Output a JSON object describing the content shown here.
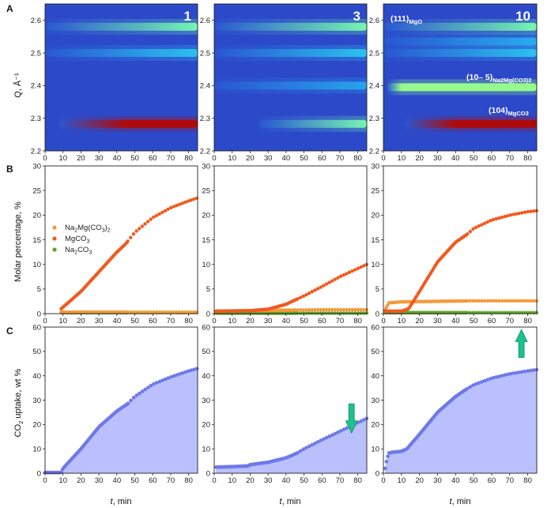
{
  "colors": {
    "na2mg": "#f59a3a",
    "mgco3": "#f05a1e",
    "na2co3": "#5fa52a",
    "uptake_line": "#6f79e8",
    "uptake_fill": "#b9c0fb",
    "arrow": "#1fbf8f",
    "heat_bg": "#2c49c9"
  },
  "row_labels": {
    "a": "A",
    "b": "B",
    "c": "C"
  },
  "x_label_t": "t",
  "x_label_rest": ", min",
  "x_ticks": [
    "0",
    "10",
    "20",
    "30",
    "40",
    "50",
    "60",
    "70",
    "80"
  ],
  "heatmap": {
    "ylabel": "Q, Å⁻¹",
    "y_ticks": [
      "2.2",
      "2.3",
      "2.4",
      "2.5",
      "2.6"
    ],
    "panel_numbers": [
      "1",
      "3",
      "10"
    ],
    "annotations": {
      "mgo_main": "(111)",
      "mgo_sub": "MgO",
      "na2mg_main": "(10– 5)",
      "na2mg_sub": "Na2Mg(CO3)2",
      "mgco3_main": "(104)",
      "mgco3_sub": "MgCO3"
    }
  },
  "molar": {
    "ylabel": "Molar percentage, %",
    "y_ticks": [
      "0",
      "5",
      "10",
      "15",
      "20",
      "25",
      "30"
    ],
    "legend": {
      "na2mg_a": "Na",
      "na2mg_b": "2",
      "na2mg_c": "Mg(CO",
      "na2mg_d": "3",
      "na2mg_e": ")",
      "na2mg_f": "2",
      "mgco3_a": "MgCO",
      "mgco3_b": "3",
      "na2co3_a": "Na",
      "na2co3_b": "2",
      "na2co3_c": "CO",
      "na2co3_d": "3"
    }
  },
  "uptake": {
    "ylabel_a": "CO",
    "ylabel_b": "2",
    "ylabel_c": " uptake, wt %",
    "y_ticks": [
      "0",
      "10",
      "20",
      "30",
      "40",
      "50",
      "60"
    ]
  },
  "chart_data": [
    {
      "type": "heatmap",
      "panel": "A1",
      "title": "1",
      "xlabel": "t, min",
      "ylabel": "Q, Å⁻¹",
      "xlim": [
        0,
        85
      ],
      "ylim": [
        2.2,
        2.65
      ],
      "bands": [
        {
          "q": 2.58,
          "start": 0,
          "peak": 85,
          "intensity": 0.55
        },
        {
          "q": 2.5,
          "start": 0,
          "peak": 85,
          "intensity": 0.35
        },
        {
          "q": 2.283,
          "start": 8,
          "peak": 45,
          "intensity": 1.0
        }
      ]
    },
    {
      "type": "heatmap",
      "panel": "A2",
      "title": "3",
      "xlabel": "t, min",
      "xlim": [
        0,
        85
      ],
      "ylim": [
        2.2,
        2.65
      ],
      "bands": [
        {
          "q": 2.58,
          "start": 0,
          "peak": 85,
          "intensity": 0.55
        },
        {
          "q": 2.5,
          "start": 0,
          "peak": 85,
          "intensity": 0.35
        },
        {
          "q": 2.4,
          "start": 0,
          "peak": 85,
          "intensity": 0.28
        },
        {
          "q": 2.283,
          "start": 25,
          "peak": 85,
          "intensity": 0.55
        }
      ]
    },
    {
      "type": "heatmap",
      "panel": "A3",
      "title": "10",
      "xlabel": "t, min",
      "xlim": [
        0,
        85
      ],
      "ylim": [
        2.2,
        2.65
      ],
      "bands": [
        {
          "q": 2.58,
          "start": 0,
          "peak": 85,
          "intensity": 0.55
        },
        {
          "q": 2.535,
          "start": 0,
          "peak": 85,
          "intensity": 0.3
        },
        {
          "q": 2.5,
          "start": 0,
          "peak": 85,
          "intensity": 0.35
        },
        {
          "q": 2.395,
          "start": 2,
          "peak": 10,
          "intensity": 0.6
        },
        {
          "q": 2.283,
          "start": 12,
          "peak": 40,
          "intensity": 1.0
        }
      ]
    },
    {
      "type": "scatter",
      "panel": "B1",
      "xlabel": "t, min",
      "ylabel": "Molar percentage, %",
      "xlim": [
        0,
        85
      ],
      "ylim": [
        0,
        30
      ],
      "x_start": 9,
      "series": [
        {
          "name": "Na2Mg(CO3)2",
          "color": "#f59a3a",
          "x": [
            9,
            85
          ],
          "y": [
            0.3,
            0.3
          ]
        },
        {
          "name": "MgCO3",
          "color": "#f05a1e",
          "x": [
            9,
            20,
            30,
            40,
            45,
            50,
            60,
            70,
            80,
            85
          ],
          "y": [
            1,
            4.5,
            8.5,
            12.5,
            14.2,
            16.5,
            19.5,
            21.5,
            22.9,
            23.5
          ]
        },
        {
          "name": "Na2CO3",
          "color": "#5fa52a",
          "x": [
            9,
            85
          ],
          "y": [
            0.2,
            0.2
          ]
        }
      ]
    },
    {
      "type": "scatter",
      "panel": "B2",
      "xlabel": "t, min",
      "ylabel": "Molar percentage, %",
      "xlim": [
        0,
        85
      ],
      "ylim": [
        0,
        30
      ],
      "x_start": 1,
      "series": [
        {
          "name": "Na2Mg(CO3)2",
          "color": "#f59a3a",
          "x": [
            1,
            20,
            40,
            60,
            85
          ],
          "y": [
            0.5,
            0.6,
            0.7,
            0.8,
            0.8
          ]
        },
        {
          "name": "MgCO3",
          "color": "#f05a1e",
          "x": [
            1,
            20,
            30,
            40,
            50,
            60,
            70,
            85
          ],
          "y": [
            0.5,
            0.6,
            0.9,
            1.9,
            3.6,
            5.5,
            7.5,
            10
          ]
        },
        {
          "name": "Na2CO3",
          "color": "#5fa52a",
          "x": [
            1,
            85
          ],
          "y": [
            0.1,
            0.1
          ]
        }
      ]
    },
    {
      "type": "scatter",
      "panel": "B3",
      "xlabel": "t, min",
      "ylabel": "Molar percentage, %",
      "xlim": [
        0,
        85
      ],
      "ylim": [
        0,
        30
      ],
      "x_start": 1,
      "series": [
        {
          "name": "Na2Mg(CO3)2",
          "color": "#f59a3a",
          "x": [
            1,
            3,
            10,
            30,
            50,
            85
          ],
          "y": [
            0.8,
            2.2,
            2.4,
            2.5,
            2.6,
            2.6
          ]
        },
        {
          "name": "MgCO3",
          "color": "#f05a1e",
          "x": [
            1,
            10,
            14,
            20,
            30,
            40,
            46,
            50,
            60,
            70,
            80,
            85
          ],
          "y": [
            0.5,
            0.5,
            1.0,
            4.5,
            10.5,
            14.5,
            16.0,
            17.3,
            19.0,
            20.0,
            20.7,
            20.9
          ]
        },
        {
          "name": "Na2CO3",
          "color": "#5fa52a",
          "x": [
            1,
            85
          ],
          "y": [
            0.2,
            0.2
          ]
        }
      ]
    },
    {
      "type": "area",
      "panel": "C1",
      "xlabel": "t, min",
      "ylabel": "CO2 uptake, wt %",
      "xlim": [
        0,
        85
      ],
      "ylim": [
        0,
        60
      ],
      "x_start": 9,
      "series": [
        {
          "name": "CO2 uptake",
          "color": "#6f79e8",
          "x": [
            0,
            9,
            10,
            20,
            30,
            40,
            46,
            50,
            60,
            70,
            80,
            85
          ],
          "y": [
            0.3,
            0.3,
            2,
            10,
            19,
            25.5,
            28.5,
            31.5,
            36.5,
            39.5,
            42,
            43
          ]
        }
      ]
    },
    {
      "type": "area",
      "panel": "C2",
      "xlabel": "t, min",
      "ylabel": "CO2 uptake, wt %",
      "xlim": [
        0,
        85
      ],
      "ylim": [
        0,
        60
      ],
      "x_start": 1,
      "arrow": "down",
      "series": [
        {
          "name": "CO2 uptake",
          "color": "#6f79e8",
          "x": [
            1,
            10,
            19,
            20,
            30,
            40,
            46,
            50,
            60,
            70,
            80,
            85
          ],
          "y": [
            2.5,
            2.7,
            3,
            3.5,
            4.5,
            6.3,
            8.2,
            10,
            13.7,
            17.2,
            20.8,
            22.5
          ]
        }
      ]
    },
    {
      "type": "area",
      "panel": "C3",
      "xlabel": "t, min",
      "ylabel": "CO2 uptake, wt %",
      "xlim": [
        0,
        85
      ],
      "ylim": [
        0,
        60
      ],
      "x_start": 1,
      "arrow": "up",
      "series": [
        {
          "name": "CO2 uptake",
          "color": "#6f79e8",
          "x": [
            1,
            2,
            3,
            5,
            10,
            13,
            20,
            30,
            40,
            46,
            50,
            60,
            70,
            80,
            85
          ],
          "y": [
            2,
            6,
            8.3,
            8.6,
            9,
            10,
            16,
            25,
            31.5,
            34.5,
            36.3,
            39,
            40.8,
            42,
            42.5
          ]
        }
      ]
    }
  ]
}
